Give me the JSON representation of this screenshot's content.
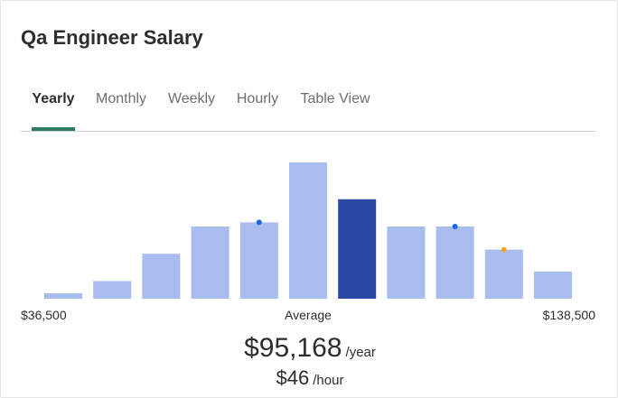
{
  "title": "Qa Engineer Salary",
  "tabs": [
    {
      "label": "Yearly",
      "active": true
    },
    {
      "label": "Monthly",
      "active": false
    },
    {
      "label": "Weekly",
      "active": false
    },
    {
      "label": "Hourly",
      "active": false
    },
    {
      "label": "Table View",
      "active": false
    }
  ],
  "colors": {
    "bar": "#a9bcf0",
    "bar_highlight": "#2b47a4",
    "marker_blue": "#1a66e0",
    "marker_orange": "#f5a623",
    "tab_underline": "#2e7d63"
  },
  "chart_data": {
    "type": "bar",
    "xlabel_left": "$36,500",
    "xlabel_center": "Average",
    "xlabel_right": "$138,500",
    "values": [
      4,
      13,
      33,
      53,
      56,
      100,
      73,
      53,
      53,
      36,
      20
    ],
    "highlight_index": 6,
    "markers": [
      {
        "bar": 4,
        "level": 56,
        "color": "blue"
      },
      {
        "bar": 8,
        "level": 53,
        "color": "blue"
      },
      {
        "bar": 9,
        "level": 36,
        "color": "orange"
      }
    ],
    "ylim": [
      0,
      100
    ]
  },
  "average": {
    "yearly_value": "$95,168",
    "yearly_unit": "/year",
    "hourly_value": "$46",
    "hourly_unit": "/hour"
  }
}
